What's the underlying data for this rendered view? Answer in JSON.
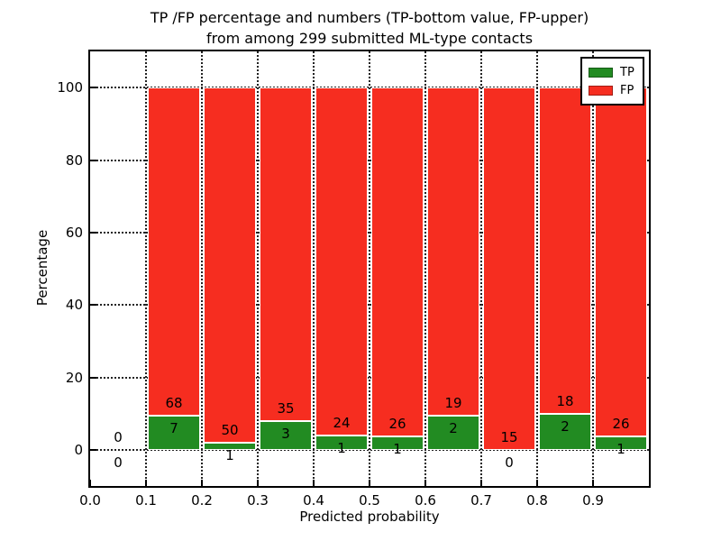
{
  "title": {
    "line1": "TP /FP percentage and numbers (TP-bottom value, FP-upper)",
    "line2": "from among 299 submitted ML-type contacts"
  },
  "axes": {
    "xlabel": "Predicted probability",
    "ylabel": "Percentage",
    "x_tick_labels": [
      "0.0",
      "0.1",
      "0.2",
      "0.3",
      "0.4",
      "0.5",
      "0.6",
      "0.7",
      "0.8",
      "0.9"
    ],
    "y_tick_labels": [
      "0",
      "20",
      "40",
      "60",
      "80",
      "100"
    ],
    "xlim": [
      0.0,
      1.0
    ],
    "ylim": [
      -10,
      110
    ],
    "grid": true
  },
  "legend": {
    "position": "upper right",
    "entries": [
      {
        "label": "TP",
        "color": "#228b22",
        "swatch": "green-rect-icon"
      },
      {
        "label": "FP",
        "color": "#f62d20",
        "swatch": "red-rect-icon"
      }
    ]
  },
  "annotation_note": "TP-bottom value, FP-upper",
  "chart_data": {
    "type": "bar",
    "variant": "stacked-percentage-histogram",
    "title": "TP /FP percentage and numbers (TP-bottom value, FP-upper) from among 299 submitted ML-type contacts",
    "xlabel": "Predicted probability",
    "ylabel": "Percentage",
    "xlim": [
      0.0,
      1.0
    ],
    "ylim": [
      -10,
      110
    ],
    "y_ticks": [
      0,
      20,
      40,
      60,
      80,
      100
    ],
    "grid": "dotted",
    "legend_position": "upper right",
    "bin_edges": [
      0.0,
      0.1,
      0.2,
      0.3,
      0.4,
      0.5,
      0.6,
      0.7,
      0.8,
      0.9,
      1.0
    ],
    "series": [
      {
        "name": "TP",
        "color": "#228b22",
        "counts": [
          0,
          7,
          1,
          3,
          1,
          1,
          2,
          0,
          2,
          1
        ]
      },
      {
        "name": "FP",
        "color": "#f62d20",
        "counts": [
          0,
          68,
          50,
          35,
          24,
          26,
          19,
          15,
          18,
          26
        ]
      }
    ],
    "tp_percent_by_bin": [
      null,
      9.33,
      1.96,
      7.89,
      4.0,
      3.7,
      9.52,
      0.0,
      10.0,
      3.7
    ],
    "fp_percent_by_bin": [
      null,
      90.67,
      98.04,
      92.11,
      96.0,
      96.3,
      90.48,
      100.0,
      90.0,
      96.3
    ],
    "total_contacts": 299
  }
}
